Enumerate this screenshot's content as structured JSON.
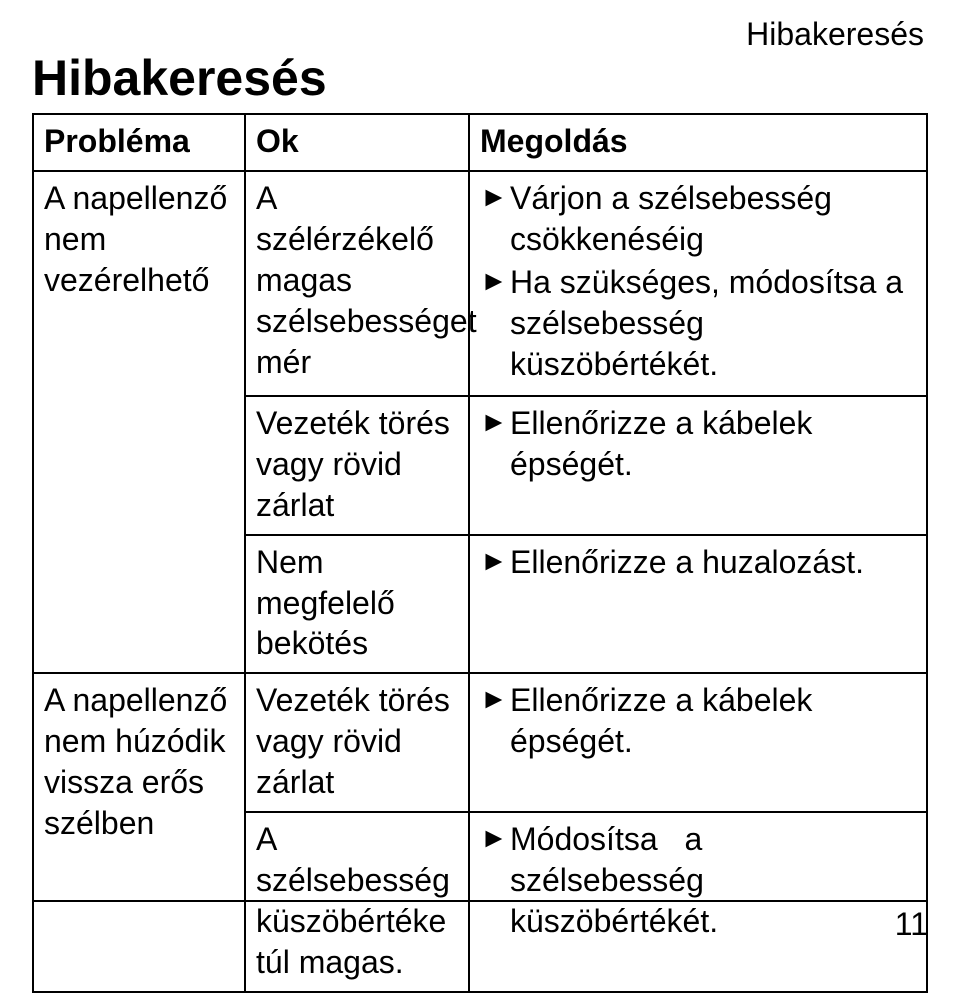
{
  "header_right": "Hibakeresés",
  "heading": "Hibakeresés",
  "cols": {
    "a": "Probléma",
    "b": "Ok",
    "c": "Megoldás"
  },
  "r1": {
    "problem": "A napellenző nem vezérelhető",
    "cause1": "A szélérzékelő magas szélsebességet mér",
    "sol1a": "Várjon a szélsebesség csökkenéséig",
    "sol1b": "Ha szükséges, módosítsa a szélsebesség küszöbértékét.",
    "cause2": "Vezeték törés vagy rövid zárlat",
    "sol2": "Ellenőrizze a kábelek épségét.",
    "cause3": "Nem megfelelő bekötés",
    "sol3": "Ellenőrizze a huzalozást."
  },
  "r2": {
    "problem": "A napellenző nem húzódik vissza erős szélben",
    "cause1": "Vezeték törés vagy rövid zárlat",
    "sol1": "Ellenőrizze a kábelek épségét.",
    "cause2": "A szélsebesség küszöbértéke túl magas.",
    "sol2_line1": "Módosítsa    a    szélsebesség",
    "sol2_line2": "küszöbértékét."
  },
  "page_number": "11",
  "marker": "►"
}
